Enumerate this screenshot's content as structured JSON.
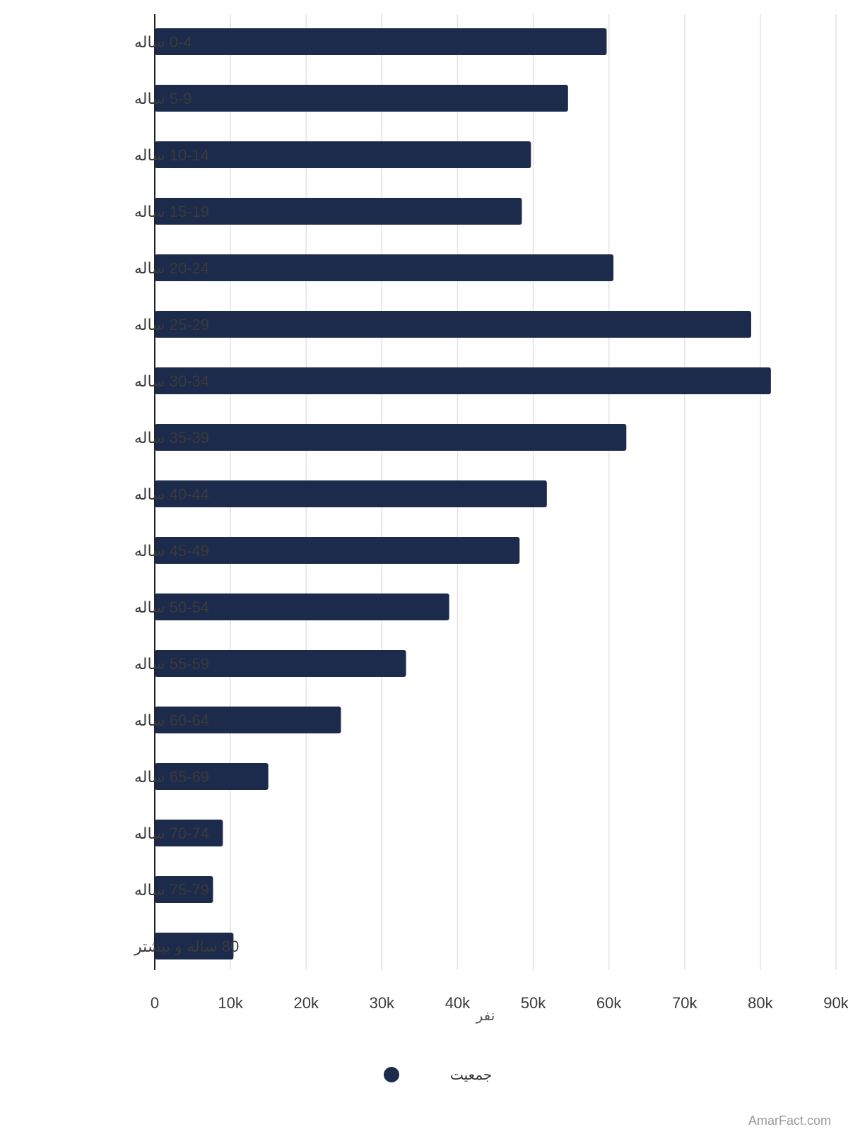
{
  "chart_data": {
    "type": "bar",
    "orientation": "horizontal",
    "categories": [
      "0-4 ساله",
      "5-9 ساله",
      "10-14 ساله",
      "15-19 ساله",
      "20-24 ساله",
      "25-29 ساله",
      "30-34 ساله",
      "35-39 ساله",
      "40-44 ساله",
      "45-49 ساله",
      "50-54 ساله",
      "55-59 ساله",
      "60-64 ساله",
      "65-69 ساله",
      "70-74 ساله",
      "75-79 ساله",
      "80 ساله و بیشتر"
    ],
    "series": [
      {
        "name": "جمعیت",
        "color": "#1c2a4c",
        "values": [
          59700,
          54600,
          49700,
          48500,
          60600,
          78800,
          81400,
          62300,
          51800,
          48200,
          38900,
          33200,
          24600,
          15000,
          9000,
          7700,
          10400
        ]
      }
    ],
    "xlabel": "نفر",
    "xlim": [
      0,
      90000
    ],
    "xticks": [
      0,
      10000,
      20000,
      30000,
      40000,
      50000,
      60000,
      70000,
      80000,
      90000
    ],
    "xtick_labels": [
      "0",
      "10k",
      "20k",
      "30k",
      "40k",
      "50k",
      "60k",
      "70k",
      "80k",
      "90k"
    ],
    "grid": true,
    "legend": {
      "position": "bottom-center",
      "label": "جمعیت"
    }
  },
  "watermark": "AmarFact.com"
}
